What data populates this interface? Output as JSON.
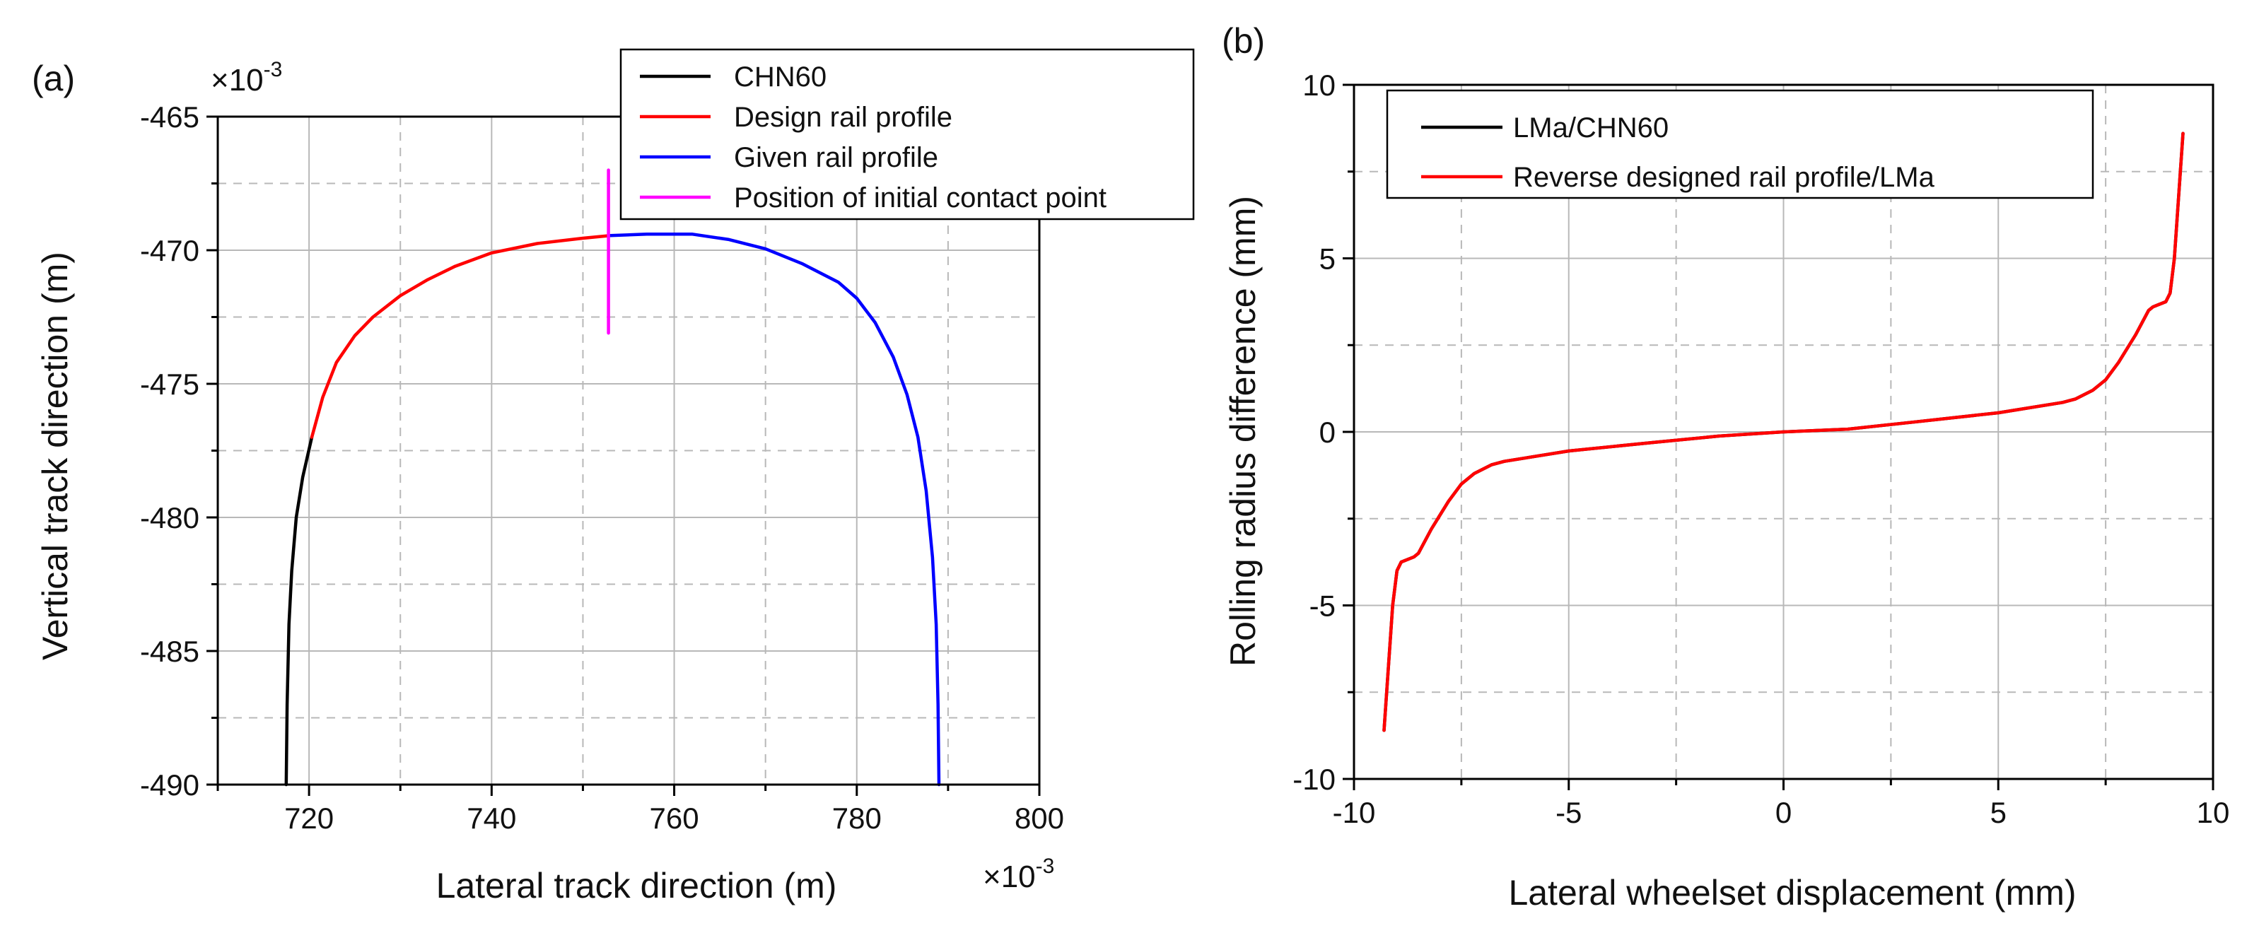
{
  "chart_data": [
    {
      "type": "line",
      "panel_label": "(a)",
      "xlabel": "Lateral track direction (m)",
      "ylabel": "Vertical track direction (m)",
      "x_multiplier_base": "×10",
      "x_multiplier_exp": "-3",
      "y_multiplier_base": "×10",
      "y_multiplier_exp": "-3",
      "xlim": [
        710,
        800
      ],
      "ylim": [
        -490,
        -465
      ],
      "x_ticks": [
        720,
        740,
        760,
        780,
        800
      ],
      "y_ticks": [
        -465,
        -470,
        -475,
        -480,
        -485,
        -490
      ],
      "grid": true,
      "legend_position": "top-right",
      "series": [
        {
          "name": "CHN60",
          "color": "#000000",
          "points": [
            [
              717.5,
              -490
            ],
            [
              717.6,
              -487
            ],
            [
              717.8,
              -484
            ],
            [
              718.1,
              -482
            ],
            [
              718.6,
              -480
            ],
            [
              719.3,
              -478.5
            ],
            [
              720.3,
              -477
            ]
          ]
        },
        {
          "name": "Design rail profile",
          "color": "#ff0000",
          "points": [
            [
              720.3,
              -477
            ],
            [
              721.5,
              -475.5
            ],
            [
              723,
              -474.2
            ],
            [
              725,
              -473.2
            ],
            [
              727,
              -472.5
            ],
            [
              730,
              -471.7
            ],
            [
              733,
              -471.1
            ],
            [
              736,
              -470.6
            ],
            [
              740,
              -470.1
            ],
            [
              745,
              -469.75
            ],
            [
              750,
              -469.55
            ],
            [
              753,
              -469.45
            ]
          ]
        },
        {
          "name": "Given rail profile",
          "color": "#0000ff",
          "points": [
            [
              753,
              -469.45
            ],
            [
              757,
              -469.4
            ],
            [
              762,
              -469.4
            ],
            [
              766,
              -469.6
            ],
            [
              770,
              -469.95
            ],
            [
              774,
              -470.5
            ],
            [
              778,
              -471.2
            ],
            [
              780,
              -471.8
            ],
            [
              782,
              -472.7
            ],
            [
              784,
              -474
            ],
            [
              785.5,
              -475.4
            ],
            [
              786.7,
              -477
            ],
            [
              787.6,
              -479
            ],
            [
              788.3,
              -481.5
            ],
            [
              788.7,
              -484
            ],
            [
              788.9,
              -487
            ],
            [
              789,
              -490
            ]
          ]
        },
        {
          "name": "Position of initial contact point",
          "color": "#ff00ff",
          "points": [
            [
              752.8,
              -467
            ],
            [
              752.8,
              -473.1
            ]
          ]
        }
      ]
    },
    {
      "type": "line",
      "panel_label": "(b)",
      "xlabel": "Lateral wheelset displacement (mm)",
      "ylabel": "Rolling radius difference (mm)",
      "xlim": [
        -10,
        10
      ],
      "ylim": [
        -10,
        10
      ],
      "x_ticks": [
        -10,
        -5,
        0,
        5,
        10
      ],
      "y_ticks": [
        -10,
        -5,
        0,
        5,
        10
      ],
      "grid": true,
      "legend_position": "top-left",
      "series": [
        {
          "name": "LMa/CHN60",
          "color": "#000000",
          "points": [
            [
              -9.3,
              -8.6
            ],
            [
              -9.2,
              -6.8
            ],
            [
              -9.1,
              -5.0
            ],
            [
              -9.0,
              -4.0
            ],
            [
              -8.9,
              -3.75
            ],
            [
              -8.6,
              -3.6
            ],
            [
              -8.5,
              -3.5
            ],
            [
              -8.2,
              -2.8
            ],
            [
              -7.8,
              -2.0
            ],
            [
              -7.5,
              -1.5
            ],
            [
              -7.2,
              -1.2
            ],
            [
              -6.8,
              -0.95
            ],
            [
              -6.5,
              -0.85
            ],
            [
              -5.0,
              -0.55
            ],
            [
              -3.0,
              -0.3
            ],
            [
              -1.5,
              -0.12
            ],
            [
              0,
              0
            ],
            [
              1.5,
              0.08
            ],
            [
              3.0,
              0.28
            ],
            [
              5.0,
              0.55
            ],
            [
              6.5,
              0.85
            ],
            [
              6.8,
              0.95
            ],
            [
              7.2,
              1.2
            ],
            [
              7.5,
              1.5
            ],
            [
              7.8,
              2.0
            ],
            [
              8.2,
              2.8
            ],
            [
              8.5,
              3.5
            ],
            [
              8.6,
              3.6
            ],
            [
              8.9,
              3.75
            ],
            [
              9.0,
              4.0
            ],
            [
              9.1,
              5.0
            ],
            [
              9.2,
              6.8
            ],
            [
              9.3,
              8.6
            ]
          ]
        },
        {
          "name": "Reverse designed rail profile/LMa",
          "color": "#ff0000",
          "points": [
            [
              -9.3,
              -8.6
            ],
            [
              -9.2,
              -6.8
            ],
            [
              -9.1,
              -5.0
            ],
            [
              -9.0,
              -4.0
            ],
            [
              -8.9,
              -3.75
            ],
            [
              -8.6,
              -3.6
            ],
            [
              -8.5,
              -3.5
            ],
            [
              -8.2,
              -2.8
            ],
            [
              -7.8,
              -2.0
            ],
            [
              -7.5,
              -1.5
            ],
            [
              -7.2,
              -1.2
            ],
            [
              -6.8,
              -0.95
            ],
            [
              -6.5,
              -0.85
            ],
            [
              -5.0,
              -0.55
            ],
            [
              -3.0,
              -0.3
            ],
            [
              -1.5,
              -0.12
            ],
            [
              0,
              0
            ],
            [
              1.5,
              0.08
            ],
            [
              3.0,
              0.28
            ],
            [
              5.0,
              0.55
            ],
            [
              6.5,
              0.85
            ],
            [
              6.8,
              0.95
            ],
            [
              7.2,
              1.2
            ],
            [
              7.5,
              1.5
            ],
            [
              7.8,
              2.0
            ],
            [
              8.2,
              2.8
            ],
            [
              8.5,
              3.5
            ],
            [
              8.6,
              3.6
            ],
            [
              8.9,
              3.75
            ],
            [
              9.0,
              4.0
            ],
            [
              9.1,
              5.0
            ],
            [
              9.2,
              6.8
            ],
            [
              9.3,
              8.6
            ]
          ]
        }
      ]
    }
  ]
}
